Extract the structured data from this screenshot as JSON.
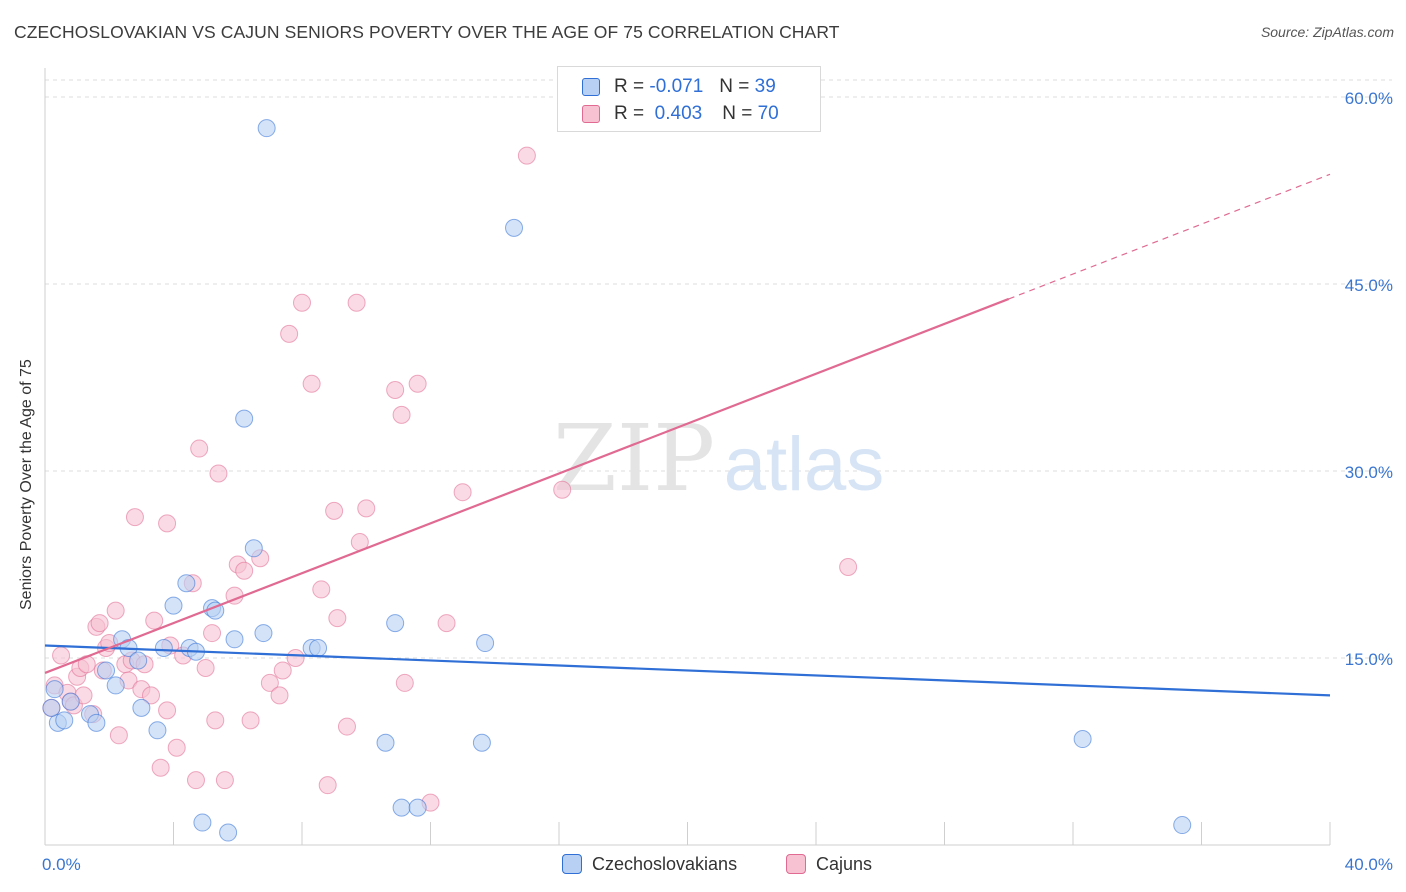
{
  "title": "CZECHOSLOVAKIAN VS CAJUN SENIORS POVERTY OVER THE AGE OF 75 CORRELATION CHART",
  "source": "Source: ZipAtlas.com",
  "watermark": {
    "zip": "ZIP",
    "atlas": "atlas"
  },
  "colors": {
    "blue": "#2f6fd6",
    "blue_fill": "#b7d0f3",
    "pink": "#e06a92",
    "pink_fill": "#f7c2d2",
    "grid": "#dcdcdc",
    "tick_label": "#3a76d0"
  },
  "legend": {
    "rows": [
      {
        "r_label": "R =",
        "r_value": "-0.071",
        "n_label": "N =",
        "n_value": "39"
      },
      {
        "r_label": "R =",
        "r_value": "0.403",
        "n_label": "N =",
        "n_value": "70"
      }
    ]
  },
  "bottom_legend": [
    "Czechoslovakians",
    "Cajuns"
  ],
  "chart_data": {
    "type": "scatter",
    "xlabel": "",
    "ylabel": "Seniors Poverty Over the Age of 75",
    "xlim": [
      0,
      40
    ],
    "ylim": [
      0,
      60
    ],
    "x_tick_labels": [
      "0.0%",
      "40.0%"
    ],
    "y_ticks": [
      15,
      30,
      45,
      60
    ],
    "y_tick_labels": [
      "15.0%",
      "30.0%",
      "45.0%",
      "60.0%"
    ],
    "grid": true,
    "legend_position": "top-center",
    "series": [
      {
        "name": "Czechoslovakians",
        "color": "#2f6fd6",
        "fill": "#b7d0f3",
        "r": -0.071,
        "n": 39,
        "trend": {
          "x": [
            0,
            40
          ],
          "y": [
            16.0,
            12.0
          ],
          "dashed_from": null
        },
        "points": [
          [
            0.3,
            12.5
          ],
          [
            0.4,
            9.8
          ],
          [
            0.6,
            10.0
          ],
          [
            0.8,
            11.5
          ],
          [
            1.4,
            10.5
          ],
          [
            1.6,
            9.8
          ],
          [
            1.9,
            14.0
          ],
          [
            2.2,
            12.8
          ],
          [
            2.4,
            16.5
          ],
          [
            2.6,
            15.8
          ],
          [
            2.9,
            14.8
          ],
          [
            3.0,
            11.0
          ],
          [
            3.5,
            9.2
          ],
          [
            3.7,
            15.8
          ],
          [
            4.0,
            19.2
          ],
          [
            4.4,
            21.0
          ],
          [
            4.5,
            15.8
          ],
          [
            4.7,
            15.5
          ],
          [
            4.9,
            1.8
          ],
          [
            5.2,
            19.0
          ],
          [
            5.3,
            18.8
          ],
          [
            5.7,
            1.0
          ],
          [
            5.9,
            16.5
          ],
          [
            6.2,
            34.2
          ],
          [
            6.5,
            23.8
          ],
          [
            6.8,
            17.0
          ],
          [
            6.9,
            57.5
          ],
          [
            8.3,
            15.8
          ],
          [
            8.5,
            15.8
          ],
          [
            10.6,
            8.2
          ],
          [
            10.9,
            17.8
          ],
          [
            11.1,
            3.0
          ],
          [
            11.6,
            3.0
          ],
          [
            13.6,
            8.2
          ],
          [
            13.7,
            16.2
          ],
          [
            14.6,
            49.5
          ],
          [
            32.3,
            8.5
          ],
          [
            35.4,
            1.6
          ],
          [
            0.2,
            11.0
          ]
        ]
      },
      {
        "name": "Cajuns",
        "color": "#e06a92",
        "fill": "#f7c2d2",
        "r": 0.403,
        "n": 70,
        "trend": {
          "x": [
            0,
            30,
            40
          ],
          "y": [
            13.8,
            43.8,
            53.8
          ],
          "dashed_from": 30
        },
        "points": [
          [
            0.2,
            11.0
          ],
          [
            0.3,
            12.8
          ],
          [
            0.5,
            15.2
          ],
          [
            0.7,
            12.2
          ],
          [
            0.8,
            11.5
          ],
          [
            0.9,
            11.2
          ],
          [
            1.0,
            13.5
          ],
          [
            1.1,
            14.2
          ],
          [
            1.2,
            12.0
          ],
          [
            1.3,
            14.5
          ],
          [
            1.5,
            10.5
          ],
          [
            1.6,
            17.5
          ],
          [
            1.7,
            17.8
          ],
          [
            1.8,
            14.0
          ],
          [
            1.9,
            15.8
          ],
          [
            2.0,
            16.2
          ],
          [
            2.2,
            18.8
          ],
          [
            2.3,
            8.8
          ],
          [
            2.5,
            14.5
          ],
          [
            2.6,
            13.2
          ],
          [
            2.7,
            14.8
          ],
          [
            2.8,
            26.3
          ],
          [
            3.0,
            12.5
          ],
          [
            3.1,
            14.5
          ],
          [
            3.3,
            12.0
          ],
          [
            3.4,
            18.0
          ],
          [
            3.6,
            6.2
          ],
          [
            3.8,
            10.8
          ],
          [
            3.8,
            25.8
          ],
          [
            3.9,
            16.0
          ],
          [
            4.1,
            7.8
          ],
          [
            4.3,
            15.2
          ],
          [
            4.6,
            21.0
          ],
          [
            4.7,
            5.2
          ],
          [
            4.8,
            31.8
          ],
          [
            5.0,
            14.2
          ],
          [
            5.2,
            17.0
          ],
          [
            5.3,
            10.0
          ],
          [
            5.4,
            29.8
          ],
          [
            5.6,
            5.2
          ],
          [
            5.9,
            20.0
          ],
          [
            6.0,
            22.5
          ],
          [
            6.2,
            22.0
          ],
          [
            6.4,
            10.0
          ],
          [
            6.7,
            23.0
          ],
          [
            7.0,
            13.0
          ],
          [
            7.3,
            12.0
          ],
          [
            7.4,
            14.0
          ],
          [
            7.6,
            41.0
          ],
          [
            7.8,
            15.0
          ],
          [
            8.0,
            43.5
          ],
          [
            8.3,
            37.0
          ],
          [
            8.6,
            20.5
          ],
          [
            8.8,
            4.8
          ],
          [
            9.0,
            26.8
          ],
          [
            9.1,
            18.2
          ],
          [
            9.4,
            9.5
          ],
          [
            9.7,
            43.5
          ],
          [
            9.8,
            24.3
          ],
          [
            10.0,
            27.0
          ],
          [
            10.9,
            36.5
          ],
          [
            11.1,
            34.5
          ],
          [
            11.2,
            13.0
          ],
          [
            11.6,
            37.0
          ],
          [
            12.0,
            3.4
          ],
          [
            12.5,
            17.8
          ],
          [
            13.0,
            28.3
          ],
          [
            15.0,
            55.3
          ],
          [
            16.1,
            28.5
          ],
          [
            25.0,
            22.3
          ]
        ]
      }
    ]
  }
}
